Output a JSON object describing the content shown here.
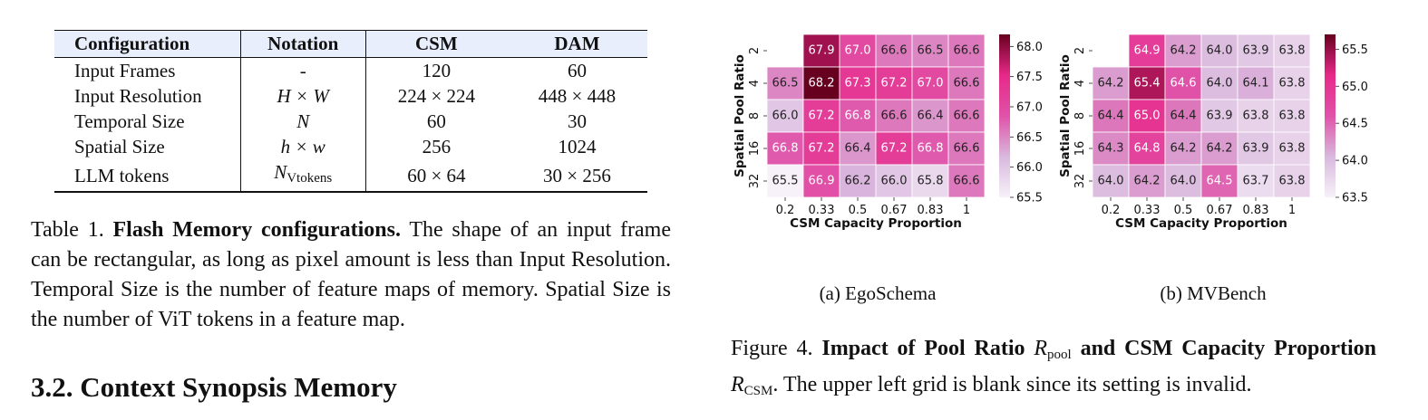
{
  "table": {
    "headers": [
      "Configuration",
      "Notation",
      "CSM",
      "DAM"
    ],
    "rows": [
      {
        "config": "Input Frames",
        "notation": "-",
        "csm": "120",
        "dam": "60"
      },
      {
        "config": "Input Resolution",
        "notation": "H × W",
        "csm": "224 × 224",
        "dam": "448 × 448"
      },
      {
        "config": "Temporal Size",
        "notation": "N",
        "csm": "60",
        "dam": "30"
      },
      {
        "config": "Spatial Size",
        "notation": "h × w",
        "csm": "256",
        "dam": "1024"
      },
      {
        "config": "LLM tokens",
        "notation": "N",
        "notation_sub": "Vtokens",
        "csm": "60 × 64",
        "dam": "30 × 256"
      }
    ]
  },
  "table_caption": {
    "label": "Table 1.",
    "title": "Flash Memory configurations.",
    "text": "The shape of an input frame can be rectangular, as long as pixel amount is less than Input Resolution. Temporal Size is the number of feature maps of memory. Spatial Size is the number of ViT tokens in a feature map."
  },
  "section_heading": "3.2. Context Synopsis Memory",
  "figure_caption": {
    "label": "Figure 4.",
    "title_a": "Impact of Pool Ratio",
    "sym1": "R",
    "sym1_sub": "pool",
    "title_b": "and CSM Capacity Proportion",
    "sym2": "R",
    "sym2_sub": "CSM",
    "text": ". The upper left grid is blank since its setting is invalid."
  },
  "chart_data": [
    {
      "type": "heatmap",
      "subcaption": "(a) EgoSchema",
      "xlabel": "CSM Capacity Proportion",
      "ylabel": "Spatial Pool Ratio",
      "x": [
        "0.2",
        "0.33",
        "0.5",
        "0.67",
        "0.83",
        "1"
      ],
      "y": [
        "2",
        "4",
        "8",
        "16",
        "32"
      ],
      "values": [
        [
          null,
          67.9,
          67.0,
          66.6,
          66.5,
          66.6
        ],
        [
          66.5,
          68.2,
          67.3,
          67.2,
          67.0,
          66.6
        ],
        [
          66.0,
          67.2,
          66.8,
          66.6,
          66.4,
          66.6
        ],
        [
          66.8,
          67.2,
          66.4,
          67.2,
          66.8,
          66.6
        ],
        [
          65.5,
          66.9,
          66.2,
          66.0,
          65.8,
          66.6
        ]
      ],
      "colorbar": {
        "min": 65.5,
        "max": 68.2,
        "ticks": [
          "65.5",
          "66.0",
          "66.5",
          "67.0",
          "67.5",
          "68.0"
        ]
      },
      "colormap": [
        "#f7f1f9",
        "#d9b8de",
        "#e052a8",
        "#e7298a",
        "#67001f"
      ]
    },
    {
      "type": "heatmap",
      "subcaption": "(b) MVBench",
      "xlabel": "CSM Capacity Proportion",
      "ylabel": "Spatial Pool Ratio",
      "x": [
        "0.2",
        "0.33",
        "0.5",
        "0.67",
        "0.83",
        "1"
      ],
      "y": [
        "2",
        "4",
        "8",
        "16",
        "32"
      ],
      "values": [
        [
          null,
          64.9,
          64.2,
          64.0,
          63.9,
          63.8
        ],
        [
          64.2,
          65.4,
          64.6,
          64.0,
          64.1,
          63.8
        ],
        [
          64.4,
          65.0,
          64.4,
          63.9,
          63.8,
          63.8
        ],
        [
          64.3,
          64.8,
          64.2,
          64.2,
          63.9,
          63.8
        ],
        [
          64.0,
          64.2,
          64.0,
          64.5,
          63.7,
          63.8
        ]
      ],
      "colorbar": {
        "min": 63.5,
        "max": 65.7,
        "ticks": [
          "63.5",
          "64.0",
          "64.5",
          "65.0",
          "65.5"
        ]
      },
      "colormap": [
        "#f7f1f9",
        "#d9b8de",
        "#e052a8",
        "#e7298a",
        "#67001f"
      ]
    }
  ]
}
